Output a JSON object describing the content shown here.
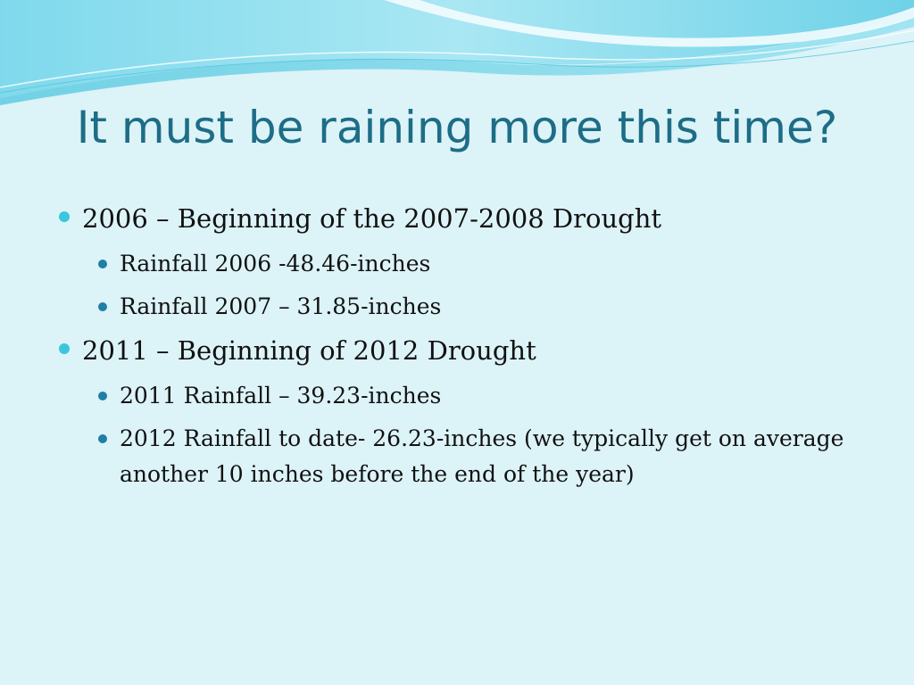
{
  "slide": {
    "title": "It must be raining more this time?",
    "colors": {
      "background": "#dcf3f8",
      "title": "#1d6d86",
      "bullet_level1": "#3cc6dd",
      "bullet_level2": "#1f7fa4",
      "wave_light": "#a8e6f2",
      "wave_dark": "#4fc9e0"
    },
    "bullets": [
      {
        "text": "2006 – Beginning of the 2007-2008 Drought",
        "sub": [
          "Rainfall 2006 -48.46-inches",
          "Rainfall 2007 – 31.85-inches"
        ]
      },
      {
        "text": "2011 – Beginning of 2012 Drought",
        "sub": [
          "2011 Rainfall – 39.23-inches",
          "2012 Rainfall to date- 26.23-inches (we typically get on average another 10 inches before the end of the year)"
        ]
      }
    ]
  }
}
